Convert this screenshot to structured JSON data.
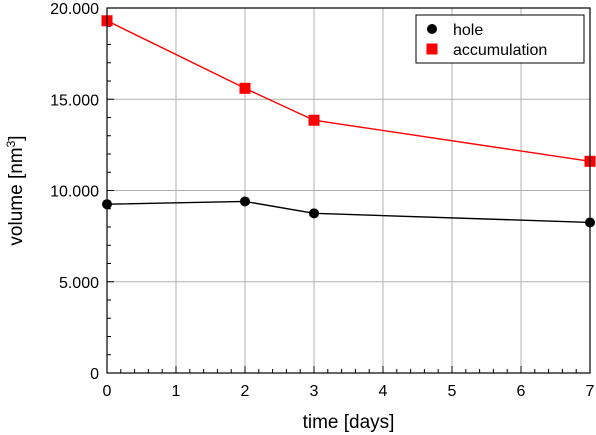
{
  "chart_data": {
    "type": "line",
    "xlabel": "time [days]",
    "ylabel_main": "volume [nm",
    "ylabel_sup": "3",
    "ylabel_close": "]",
    "xlim": [
      0,
      7
    ],
    "ylim": [
      0,
      20000
    ],
    "x_ticks": [
      0,
      1,
      2,
      3,
      4,
      5,
      6,
      7
    ],
    "x_tick_labels": [
      "0",
      "1",
      "2",
      "3",
      "4",
      "5",
      "6",
      "7"
    ],
    "y_ticks": [
      0,
      5000,
      10000,
      15000,
      20000
    ],
    "y_tick_labels": [
      "0",
      "5.000",
      "10.000",
      "15.000",
      "20.000"
    ],
    "grid": true,
    "legend_position": "top-right",
    "series": [
      {
        "name": "hole",
        "marker": "circle",
        "color": "#000000",
        "x": [
          0,
          2,
          3,
          7
        ],
        "y": [
          9250,
          9400,
          8750,
          8250
        ]
      },
      {
        "name": "accumulation",
        "marker": "square",
        "color": "#ff0000",
        "x": [
          0,
          2,
          3,
          7
        ],
        "y": [
          19300,
          15600,
          13850,
          11600
        ]
      }
    ]
  }
}
